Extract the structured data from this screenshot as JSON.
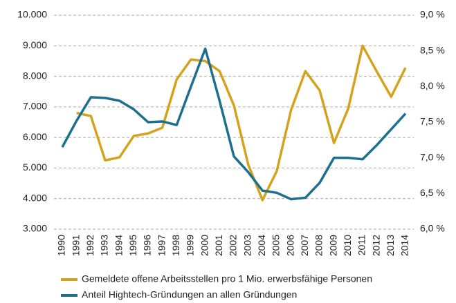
{
  "chart_data": {
    "type": "line",
    "categories": [
      "1990",
      "1991",
      "1992",
      "1993",
      "1994",
      "1995",
      "1996",
      "1997",
      "1998",
      "1999",
      "2000",
      "2001",
      "2002",
      "2003",
      "2004",
      "2005",
      "2006",
      "2007",
      "2008",
      "2009",
      "2010",
      "2011",
      "2012",
      "2013",
      "2014"
    ],
    "series": [
      {
        "name": "Gemeldete offene Arbeitsstellen pro 1 Mio. erwerbsfähige Personen",
        "color": "#d4a21d",
        "axis": "y",
        "values": [
          null,
          6800,
          6700,
          5250,
          5350,
          6050,
          6130,
          6320,
          7900,
          8550,
          8500,
          8170,
          7050,
          5120,
          3950,
          4900,
          6900,
          8170,
          7540,
          5820,
          6950,
          9000,
          8150,
          7330,
          8280
        ]
      },
      {
        "name": "Anteil Hightech-Gründungen an allen Gründungen",
        "color": "#1d6f8e",
        "axis": "y2",
        "values": [
          7.15,
          7.52,
          7.85,
          7.84,
          7.8,
          7.68,
          7.5,
          7.51,
          7.46,
          8.0,
          8.53,
          7.8,
          7.02,
          6.8,
          6.54,
          6.51,
          6.42,
          6.44,
          6.65,
          7.0,
          7.0,
          6.98,
          7.18,
          7.4,
          7.62
        ]
      }
    ],
    "ylim": [
      3000,
      10000
    ],
    "yticks": [
      {
        "value": 3000,
        "label": "3.000"
      },
      {
        "value": 4000,
        "label": "4.000"
      },
      {
        "value": 5000,
        "label": "5.000"
      },
      {
        "value": 6000,
        "label": "6.000"
      },
      {
        "value": 7000,
        "label": "7.000"
      },
      {
        "value": 8000,
        "label": "8.000"
      },
      {
        "value": 9000,
        "label": "9.000"
      },
      {
        "value": 10000,
        "label": "10.000"
      }
    ],
    "y2lim": [
      6.0,
      9.0
    ],
    "y2ticks": [
      {
        "value": 6.0,
        "label": "6,0 %"
      },
      {
        "value": 6.5,
        "label": "6,5 %"
      },
      {
        "value": 7.0,
        "label": "7,0 %"
      },
      {
        "value": 7.5,
        "label": "7,5 %"
      },
      {
        "value": 8.0,
        "label": "8,0 %"
      },
      {
        "value": 8.5,
        "label": "8,5 %"
      },
      {
        "value": 9.0,
        "label": "9,0 %"
      }
    ],
    "grid": true
  }
}
